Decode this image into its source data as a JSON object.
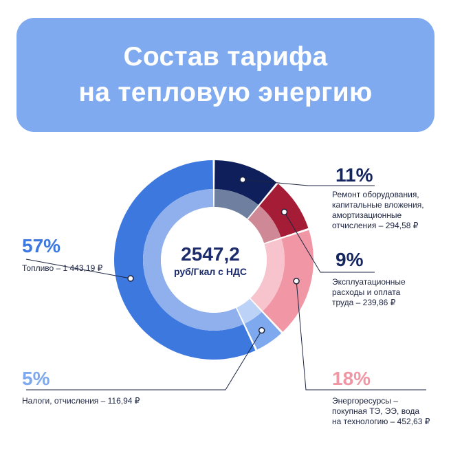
{
  "title": {
    "line1": "Состав тарифа",
    "line2": "на тепловую энергию"
  },
  "chart_data": {
    "type": "donut",
    "title": "Состав тарифа на тепловую энергию",
    "total": {
      "value": "2547,2",
      "unit": "руб/Гкал с НДС"
    },
    "slices": [
      {
        "name": "Ремонт оборудования, капитальные вложения, амортизационные отчисления",
        "percent": 11,
        "value": 294.58,
        "color": "#0f1f5c",
        "inner_color": "#6e7f9f"
      },
      {
        "name": "Эксплуатационные расходы и оплата труда",
        "percent": 9,
        "value": 239.86,
        "color": "#a51c36",
        "inner_color": "#cf8895"
      },
      {
        "name": "Энергоресурсы – покупная ТЭ, ЭЭ, вода на технологию",
        "percent": 18,
        "value": 452.63,
        "color": "#f196a5",
        "inner_color": "#f7c4cd"
      },
      {
        "name": "Налоги, отчисления",
        "percent": 5,
        "value": 116.94,
        "color": "#7ea9ee",
        "inner_color": "#bcd2f6"
      },
      {
        "name": "Топливо",
        "percent": 57,
        "value": 1443.19,
        "color": "#3d78df",
        "inner_color": "#8fb0ec"
      }
    ]
  },
  "labels": {
    "repair": {
      "pct": "11%",
      "l1": "Ремонт оборудования,",
      "l2": "капитальные вложения,",
      "l3": "амортизационные",
      "l4": "отчисления – 294,58 ₽",
      "color": "#14255f"
    },
    "operating": {
      "pct": "9%",
      "l1": "Эксплуатационные",
      "l2": "расходы и оплата",
      "l3": "труда – 239,86 ₽",
      "color": "#14255f"
    },
    "energy": {
      "pct": "18%",
      "l1": "Энергоресурсы –",
      "l2": "покупная ТЭ, ЭЭ, вода",
      "l3": "на технологию – 452,63 ₽",
      "color": "#f196a5"
    },
    "taxes": {
      "pct": "5%",
      "l1": "Налоги, отчисления – 116,94 ₽",
      "color": "#7ea9ee"
    },
    "fuel": {
      "pct": "57%",
      "l1": "Топливо – 1 443,19 ₽",
      "color": "#3d78df"
    }
  }
}
